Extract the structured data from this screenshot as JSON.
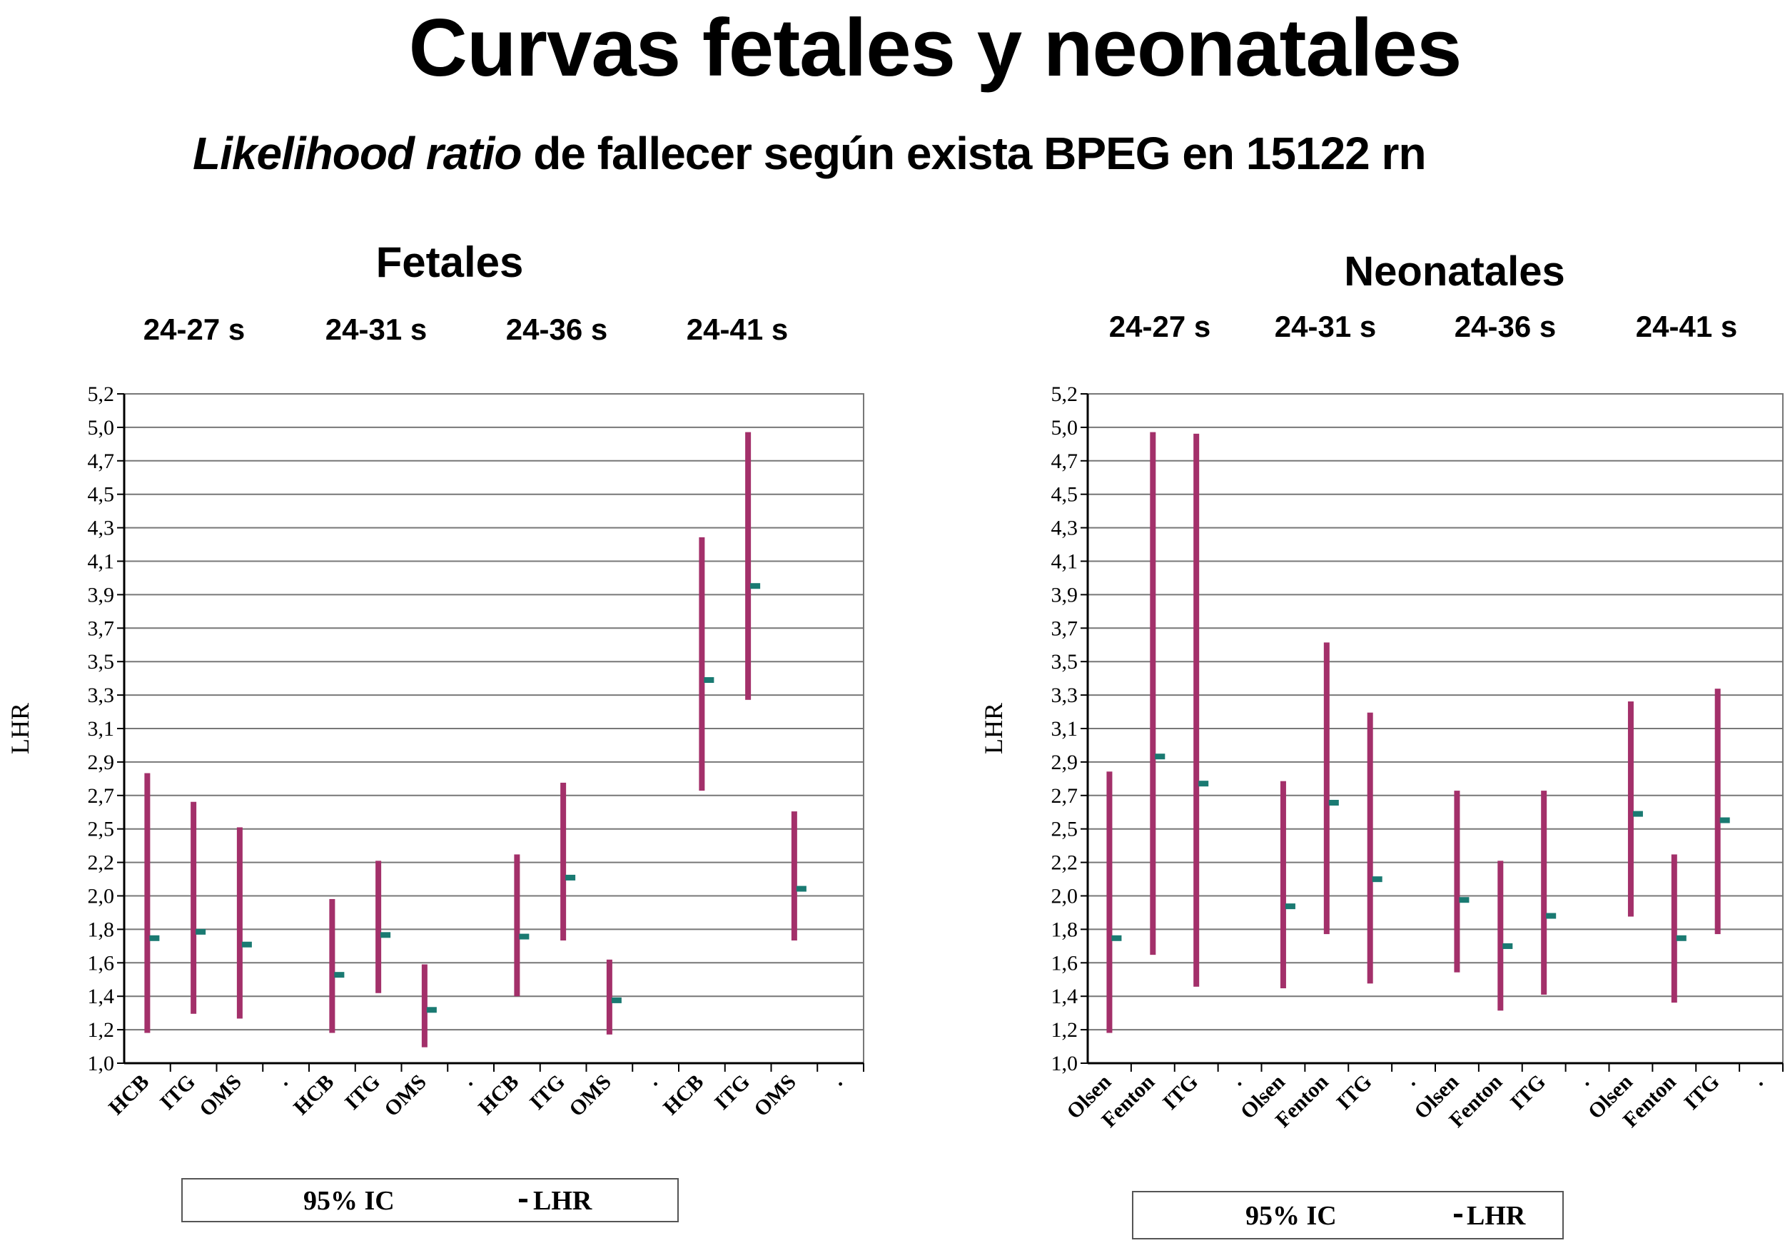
{
  "header": {
    "title": "Curvas fetales y neonatales",
    "subtitle_italic": "Likelihood ratio",
    "subtitle_rest": " de fallecer según exista BPEG en 15122  rn"
  },
  "colors": {
    "ci_bar": "#a3306a",
    "lhr_marker": "#1a7a72",
    "grid": "#777777",
    "axis": "#000000"
  },
  "chart_data": [
    {
      "type": "error-bar",
      "title": "Fetales",
      "ylabel": "LHR",
      "ylim": [
        1.0,
        5.2
      ],
      "yticks": [
        "1,0",
        "1,2",
        "1,4",
        "1,6",
        "1,8",
        "2,0",
        "2,2",
        "2,5",
        "2,7",
        "2,9",
        "3,1",
        "3,3",
        "3,5",
        "3,7",
        "3,9",
        "4,1",
        "4,3",
        "4,5",
        "4,7",
        "5,0",
        "5,2"
      ],
      "groups": [
        {
          "label": "24-27 s",
          "categories": [
            "HCB",
            "ITG",
            "OMS"
          ],
          "ci_low": [
            1.19,
            1.31,
            1.28
          ],
          "ci_high": [
            2.82,
            2.64,
            2.48
          ],
          "lhr": [
            1.78,
            1.82,
            1.74
          ]
        },
        {
          "label": "24-31 s",
          "categories": [
            "HCB",
            "ITG",
            "OMS"
          ],
          "ci_low": [
            1.19,
            1.44,
            1.1
          ],
          "ci_high": [
            2.03,
            2.27,
            1.62
          ],
          "lhr": [
            1.55,
            1.8,
            1.33
          ]
        },
        {
          "label": "24-36 s",
          "categories": [
            "HCB",
            "ITG",
            "OMS"
          ],
          "ci_low": [
            1.42,
            1.77,
            1.18
          ],
          "ci_high": [
            2.31,
            2.76,
            1.65
          ],
          "lhr": [
            1.79,
            2.16,
            1.39
          ]
        },
        {
          "label": "24-41 s",
          "categories": [
            "HCB",
            "ITG",
            "OMS"
          ],
          "ci_low": [
            2.71,
            3.28,
            1.77
          ],
          "ci_high": [
            4.3,
            4.96,
            2.58
          ],
          "lhr": [
            3.4,
            3.99,
            2.09
          ]
        }
      ],
      "separator_label": ".",
      "legend": [
        "95% IC",
        "LHR"
      ]
    },
    {
      "type": "error-bar",
      "title": "Neonatales",
      "ylabel": "LHR",
      "ylim": [
        1.0,
        5.2
      ],
      "yticks": [
        "1,0",
        "1,2",
        "1,4",
        "1,6",
        "1,8",
        "2,0",
        "2,2",
        "2,5",
        "2,7",
        "2,9",
        "3,1",
        "3,3",
        "3,5",
        "3,7",
        "3,9",
        "4,1",
        "4,3",
        "4,5",
        "4,7",
        "5,0",
        "5,2"
      ],
      "groups": [
        {
          "label": "24-27 s",
          "categories": [
            "Olsen",
            "Fenton",
            "ITG"
          ],
          "ci_low": [
            1.19,
            1.68,
            1.48
          ],
          "ci_high": [
            2.83,
            4.96,
            4.95
          ],
          "lhr": [
            1.78,
            2.92,
            2.75
          ]
        },
        {
          "label": "24-31 s",
          "categories": [
            "Olsen",
            "Fenton",
            "ITG"
          ],
          "ci_low": [
            1.47,
            1.81,
            1.5
          ],
          "ci_high": [
            2.77,
            3.64,
            3.2
          ],
          "lhr": [
            1.98,
            2.63,
            2.15
          ]
        },
        {
          "label": "24-36 s",
          "categories": [
            "Olsen",
            "Fenton",
            "ITG"
          ],
          "ci_low": [
            1.57,
            1.33,
            1.43
          ],
          "ci_high": [
            2.71,
            2.27,
            2.71
          ],
          "lhr": [
            2.02,
            1.73,
            1.92
          ]
        },
        {
          "label": "24-41 s",
          "categories": [
            "Olsen",
            "Fenton",
            "ITG"
          ],
          "ci_low": [
            1.92,
            1.38,
            1.81
          ],
          "ci_high": [
            3.27,
            2.31,
            3.35
          ],
          "lhr": [
            2.56,
            1.78,
            2.52
          ]
        }
      ],
      "separator_label": ".",
      "legend": [
        "95% IC",
        "LHR"
      ]
    }
  ]
}
